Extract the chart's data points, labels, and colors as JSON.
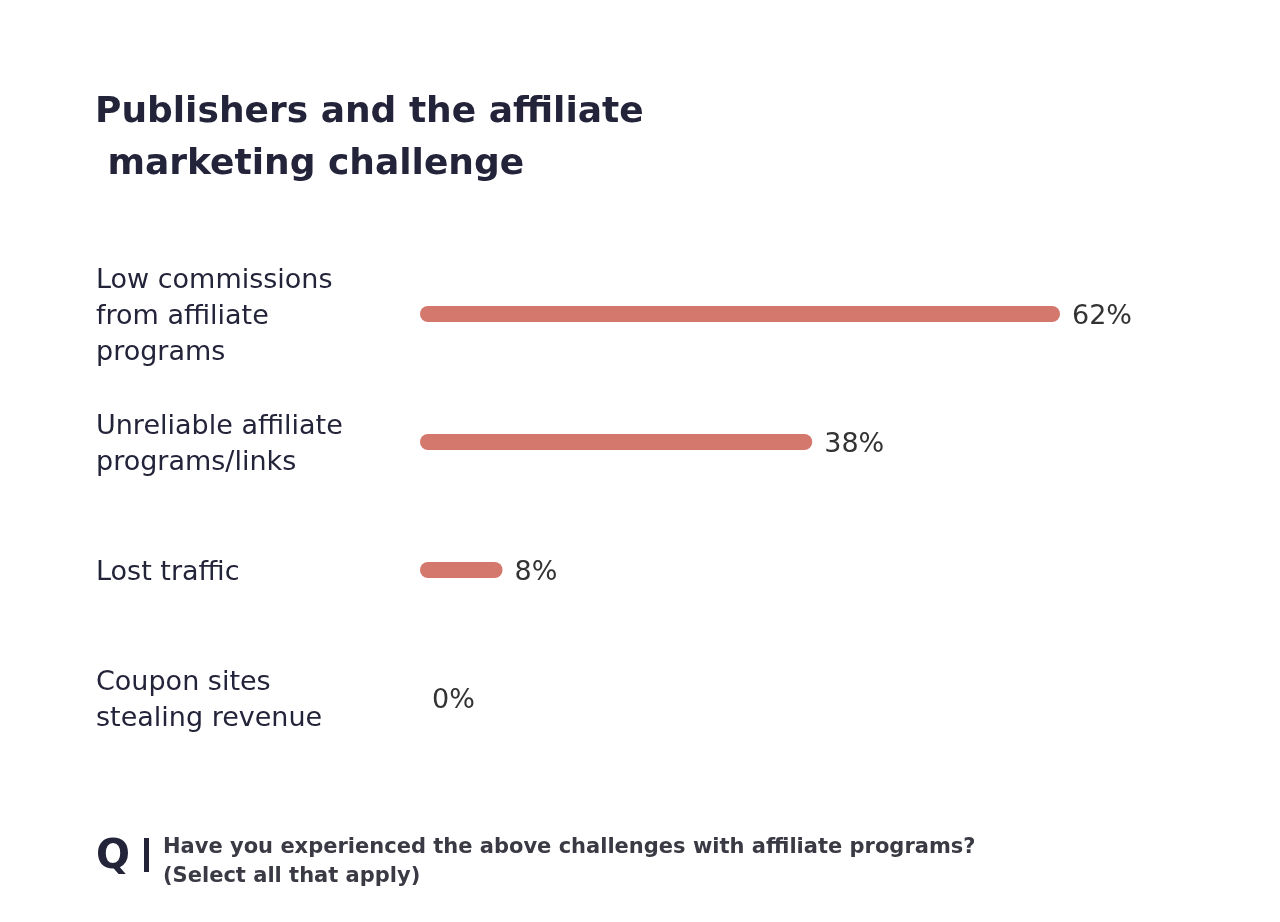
{
  "chart_data": {
    "type": "bar",
    "orientation": "horizontal",
    "title": "Publishers and the affiliate marketing challenge",
    "categories": [
      "Low commissions from affiliate programs",
      "Unreliable affiliate programs/links",
      "Lost traffic",
      "Coupon sites stealing revenue"
    ],
    "values": [
      62,
      38,
      8,
      0
    ],
    "color": "#d4776c",
    "value_labels": [
      "62%",
      "38%",
      "8%",
      "0%"
    ],
    "annotations": [
      "Q",
      "Have you experienced the above challenges with affiliate programs? (Select all that apply)"
    ]
  }
}
